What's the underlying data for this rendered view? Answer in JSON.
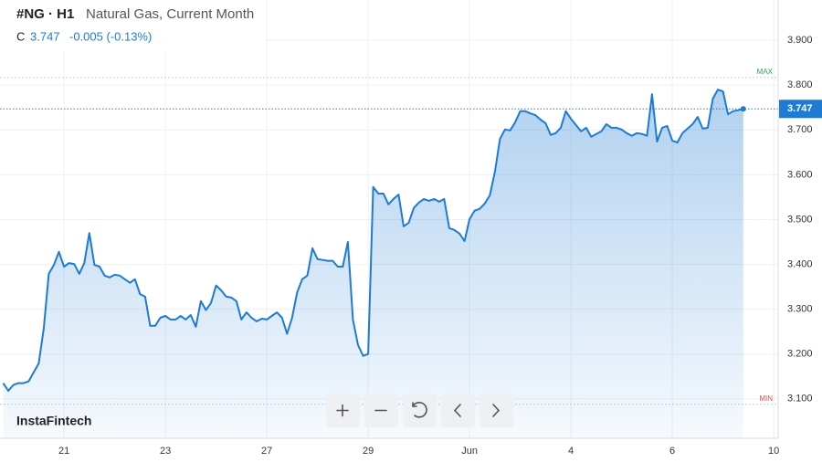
{
  "chart_data": {
    "type": "area",
    "symbol": "#NG · H1",
    "title": "Natural Gas, Current Month",
    "close_prefix": "C",
    "close": 3.747,
    "change": "-0.005 (-0.13%)",
    "brand": "InstaFintech",
    "color": "#1e7bd4",
    "grid": true,
    "max": {
      "value": 3.817,
      "label": "MAX"
    },
    "min": {
      "value": 3.088,
      "label": "MIN"
    },
    "last": 3.747,
    "ylim": [
      3.012,
      3.99
    ],
    "yticks": [
      {
        "value": 3.1,
        "label": "3.100"
      },
      {
        "value": 3.2,
        "label": "3.200"
      },
      {
        "value": 3.3,
        "label": "3.300"
      },
      {
        "value": 3.4,
        "label": "3.400"
      },
      {
        "value": 3.5,
        "label": "3.500"
      },
      {
        "value": 3.6,
        "label": "3.600"
      },
      {
        "value": 3.7,
        "label": "3.700"
      },
      {
        "value": 3.8,
        "label": "3.800"
      },
      {
        "value": 3.9,
        "label": "3.900"
      }
    ],
    "categories": [
      null,
      null,
      null,
      null,
      null,
      null,
      null,
      null,
      null,
      null,
      null,
      null,
      "21",
      null,
      null,
      null,
      null,
      null,
      null,
      null,
      null,
      null,
      null,
      null,
      null,
      null,
      null,
      null,
      null,
      null,
      null,
      null,
      "23",
      null,
      null,
      null,
      null,
      null,
      null,
      null,
      null,
      null,
      null,
      null,
      null,
      null,
      null,
      null,
      null,
      null,
      null,
      null,
      "27",
      null,
      null,
      null,
      null,
      null,
      null,
      null,
      null,
      null,
      null,
      null,
      null,
      null,
      null,
      null,
      null,
      null,
      null,
      null,
      "29",
      null,
      null,
      null,
      null,
      null,
      null,
      null,
      null,
      null,
      null,
      null,
      null,
      null,
      null,
      null,
      null,
      null,
      null,
      null,
      "Jun",
      null,
      null,
      null,
      null,
      null,
      null,
      null,
      null,
      null,
      null,
      null,
      null,
      null,
      null,
      null,
      null,
      null,
      null,
      null,
      "4",
      null,
      null,
      null,
      null,
      null,
      null,
      null,
      null,
      null,
      null,
      null,
      null,
      null,
      null,
      null,
      null,
      null,
      null,
      null,
      "6",
      null,
      null,
      null,
      null,
      null,
      null,
      null,
      null,
      null,
      null,
      null,
      null,
      null,
      null,
      null,
      null,
      null,
      null,
      null,
      "10"
    ],
    "values": [
      3.135,
      3.118,
      3.131,
      3.135,
      3.135,
      3.139,
      3.159,
      3.179,
      3.257,
      3.379,
      3.399,
      3.428,
      3.395,
      3.403,
      3.401,
      3.379,
      3.403,
      3.47,
      3.399,
      3.395,
      3.375,
      3.371,
      3.377,
      3.375,
      3.367,
      3.359,
      3.367,
      3.334,
      3.328,
      3.263,
      3.263,
      3.281,
      3.285,
      3.277,
      3.277,
      3.285,
      3.277,
      3.287,
      3.261,
      3.318,
      3.298,
      3.314,
      3.353,
      3.342,
      3.328,
      3.326,
      3.318,
      3.277,
      3.293,
      3.281,
      3.273,
      3.279,
      3.277,
      3.285,
      3.293,
      3.281,
      3.245,
      3.281,
      3.338,
      3.367,
      3.375,
      3.436,
      3.412,
      3.41,
      3.408,
      3.408,
      3.395,
      3.395,
      3.45,
      3.277,
      3.22,
      3.196,
      3.2,
      3.573,
      3.558,
      3.558,
      3.534,
      3.546,
      3.556,
      3.485,
      3.493,
      3.526,
      3.538,
      3.546,
      3.542,
      3.546,
      3.54,
      3.546,
      3.481,
      3.477,
      3.469,
      3.452,
      3.501,
      3.52,
      3.524,
      3.536,
      3.554,
      3.607,
      3.68,
      3.701,
      3.699,
      3.717,
      3.742,
      3.742,
      3.737,
      3.733,
      3.723,
      3.715,
      3.689,
      3.693,
      3.705,
      3.742,
      3.725,
      3.711,
      3.697,
      3.705,
      3.685,
      3.691,
      3.697,
      3.713,
      3.705,
      3.705,
      3.701,
      3.693,
      3.687,
      3.693,
      3.691,
      3.687,
      3.78,
      3.674,
      3.705,
      3.709,
      3.676,
      3.672,
      3.693,
      3.703,
      3.713,
      3.729,
      3.703,
      3.705,
      3.77,
      3.79,
      3.786,
      3.735,
      3.742,
      3.744,
      3.747,
      null,
      null,
      null,
      null,
      null,
      null
    ]
  }
}
